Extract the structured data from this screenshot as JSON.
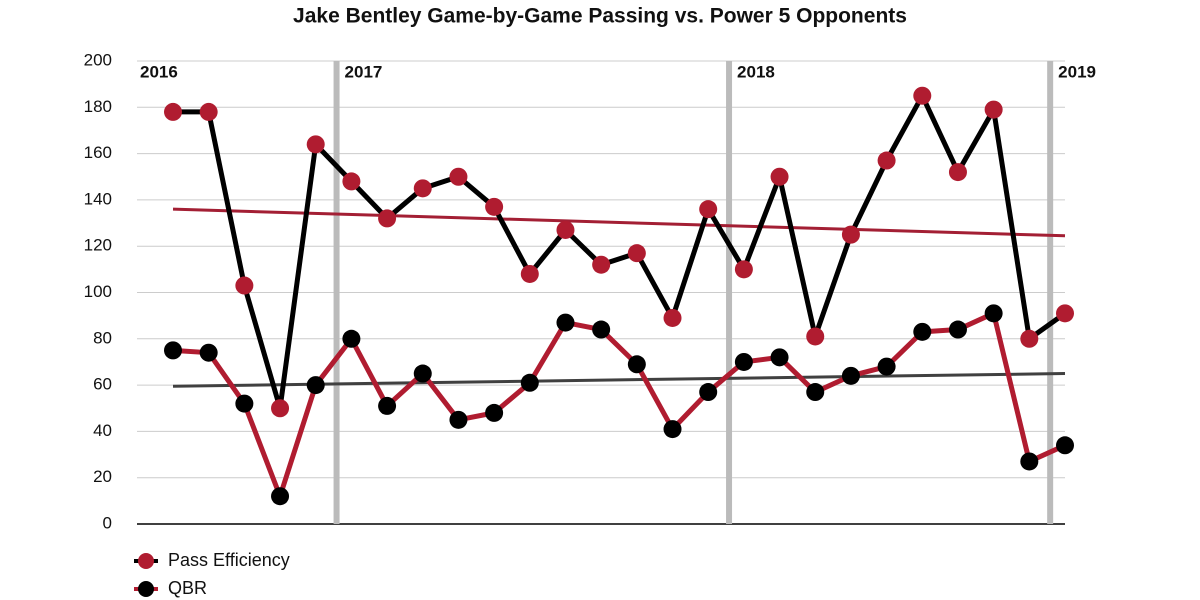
{
  "chart_data": {
    "type": "line",
    "title": "Jake Bentley Game-by-Game Passing vs. Power 5 Opponents",
    "categories": [
      null,
      null,
      null,
      null,
      null,
      null,
      null,
      null,
      null,
      null,
      null,
      null,
      null,
      null,
      null,
      null,
      null,
      null,
      null,
      null,
      null,
      null,
      null,
      null,
      null,
      null
    ],
    "series": [
      {
        "name": "Pass Efficiency",
        "color": "#b01c30",
        "line_color": "#000000",
        "values": [
          178,
          178,
          103,
          50,
          164,
          148,
          132,
          145,
          150,
          137,
          108,
          127,
          112,
          117,
          89,
          136,
          110,
          150,
          81,
          125,
          157,
          185,
          152,
          179,
          80,
          91
        ]
      },
      {
        "name": "QBR",
        "color": "#000000",
        "line_color": "#b01c30",
        "values": [
          75,
          74,
          52,
          12,
          60,
          80,
          51,
          65,
          45,
          48,
          61,
          87,
          84,
          69,
          41,
          57,
          70,
          72,
          57,
          64,
          68,
          83,
          84,
          91,
          27,
          34
        ]
      }
    ],
    "trendlines": [
      {
        "color": "#a31f34",
        "start": 136,
        "end": 124.5
      },
      {
        "color": "#404040",
        "start": 59.5,
        "end": 65
      }
    ],
    "annotations": [
      {
        "text": "2016",
        "start_index": 0
      },
      {
        "text": "2017",
        "start_index": 5
      },
      {
        "text": "2018",
        "start_index": 16
      },
      {
        "text": "2019",
        "start_index": 25
      }
    ],
    "ylim": [
      0,
      200
    ],
    "yticks": [
      0,
      20,
      40,
      60,
      80,
      100,
      120,
      140,
      160,
      180,
      200
    ],
    "grid": true,
    "legend": "bottom-left"
  }
}
